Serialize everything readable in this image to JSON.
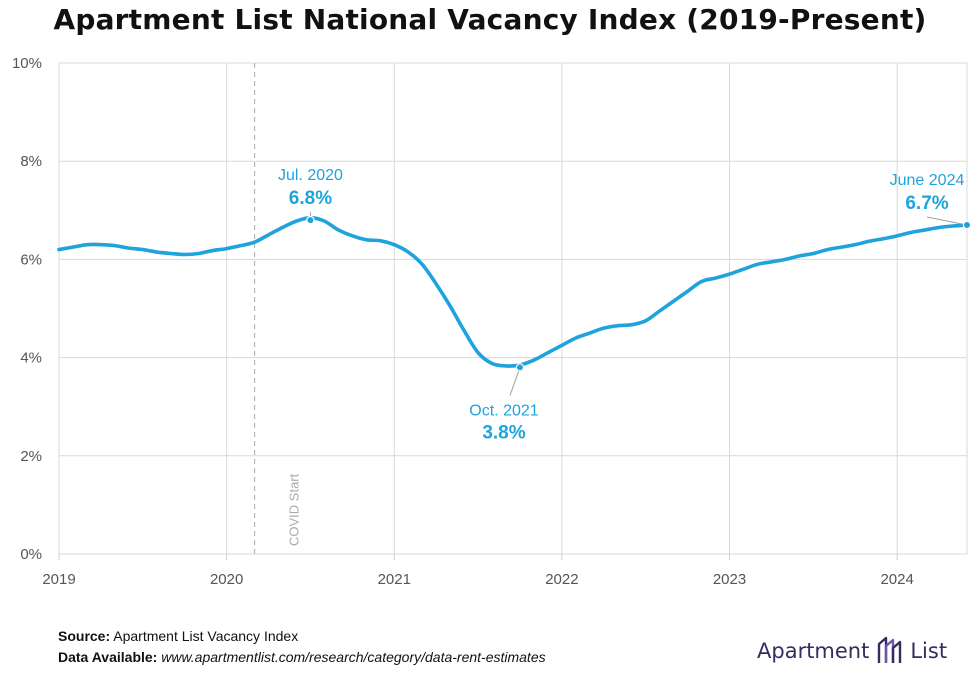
{
  "chart_data": {
    "type": "line",
    "title": "Apartment List National Vacancy Index (2019-Present)",
    "xlabel": "",
    "ylabel": "",
    "y_unit": "%",
    "ylim": [
      0,
      10
    ],
    "yticks": [
      0,
      2,
      4,
      6,
      8,
      10
    ],
    "ytick_labels": [
      "0%",
      "2%",
      "4%",
      "6%",
      "8%",
      "10%"
    ],
    "xlim": [
      "2019-01",
      "2024-06"
    ],
    "xticks": [
      "2019-01",
      "2020-01",
      "2021-01",
      "2022-01",
      "2023-01",
      "2024-01"
    ],
    "xtick_labels": [
      "2019",
      "2020",
      "2021",
      "2022",
      "2023",
      "2024"
    ],
    "grid": true,
    "series": [
      {
        "color": "#1fa3dc",
        "x": [
          "2019-01",
          "2019-02",
          "2019-03",
          "2019-04",
          "2019-05",
          "2019-06",
          "2019-07",
          "2019-08",
          "2019-09",
          "2019-10",
          "2019-11",
          "2019-12",
          "2020-01",
          "2020-02",
          "2020-03",
          "2020-04",
          "2020-05",
          "2020-06",
          "2020-07",
          "2020-08",
          "2020-09",
          "2020-10",
          "2020-11",
          "2020-12",
          "2021-01",
          "2021-02",
          "2021-03",
          "2021-04",
          "2021-05",
          "2021-06",
          "2021-07",
          "2021-08",
          "2021-09",
          "2021-10",
          "2021-11",
          "2021-12",
          "2022-01",
          "2022-02",
          "2022-03",
          "2022-04",
          "2022-05",
          "2022-06",
          "2022-07",
          "2022-08",
          "2022-09",
          "2022-10",
          "2022-11",
          "2022-12",
          "2023-01",
          "2023-02",
          "2023-03",
          "2023-04",
          "2023-05",
          "2023-06",
          "2023-07",
          "2023-08",
          "2023-09",
          "2023-10",
          "2023-11",
          "2023-12",
          "2024-01",
          "2024-02",
          "2024-03",
          "2024-04",
          "2024-05",
          "2024-06"
        ],
        "values": [
          6.2,
          6.25,
          6.3,
          6.3,
          6.28,
          6.23,
          6.2,
          6.15,
          6.12,
          6.1,
          6.12,
          6.18,
          6.22,
          6.28,
          6.35,
          6.5,
          6.65,
          6.78,
          6.85,
          6.78,
          6.6,
          6.48,
          6.4,
          6.38,
          6.3,
          6.15,
          5.9,
          5.5,
          5.05,
          4.55,
          4.1,
          3.88,
          3.83,
          3.85,
          3.95,
          4.1,
          4.25,
          4.4,
          4.5,
          4.6,
          4.65,
          4.67,
          4.75,
          4.95,
          5.15,
          5.35,
          5.55,
          5.62,
          5.7,
          5.8,
          5.9,
          5.95,
          6.0,
          6.07,
          6.12,
          6.2,
          6.25,
          6.3,
          6.37,
          6.42,
          6.48,
          6.55,
          6.6,
          6.65,
          6.68,
          6.7
        ]
      }
    ],
    "reference_line": {
      "x": "2020-03",
      "label": "COVID Start",
      "style": "dashed"
    },
    "annotations": [
      {
        "x": "2020-07",
        "y": 6.8,
        "date_label": "Jul. 2020",
        "value_label": "6.8%",
        "placement": "above"
      },
      {
        "x": "2021-10",
        "y": 3.8,
        "date_label": "Oct. 2021",
        "value_label": "3.8%",
        "placement": "below"
      },
      {
        "x": "2024-06",
        "y": 6.7,
        "date_label": "June 2024",
        "value_label": "6.7%",
        "placement": "above"
      }
    ]
  },
  "footer": {
    "source_label": "Source:",
    "source_text": "Apartment List Vacancy Index",
    "data_label": "Data Available:",
    "data_text": "www.apartmentlist.com/research/category/data-rent-estimates"
  },
  "logo": {
    "word1": "Apartment",
    "word2": "List",
    "icon": "apartment-list-logo-icon"
  }
}
